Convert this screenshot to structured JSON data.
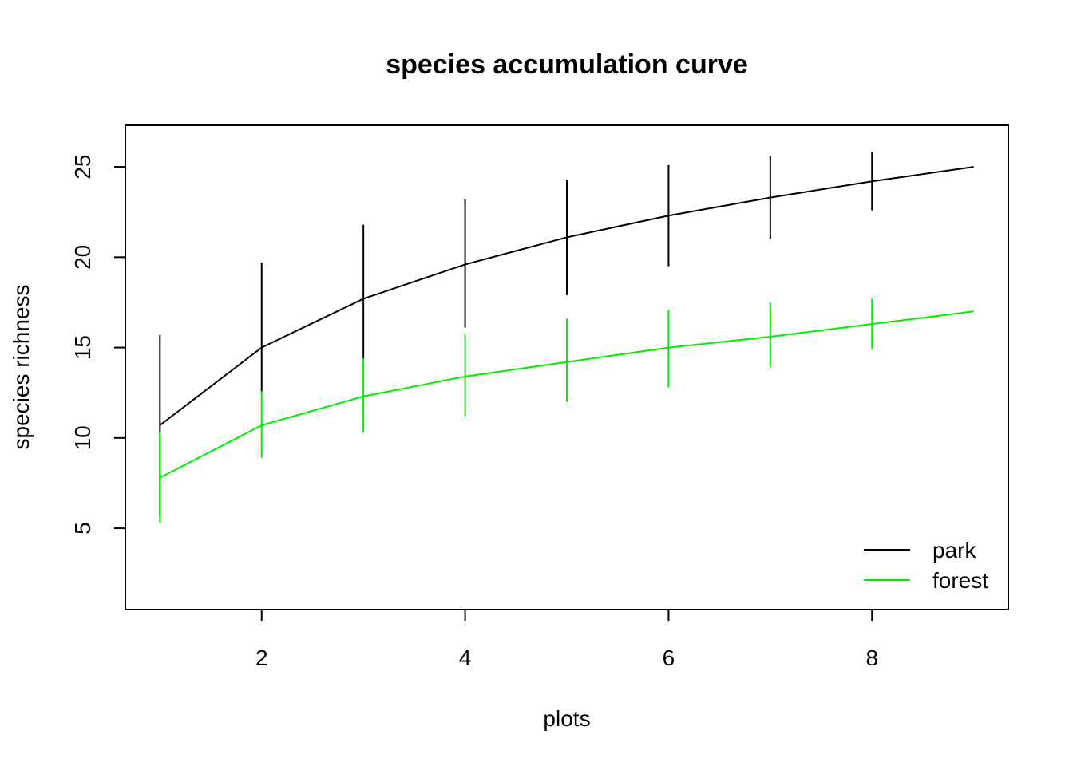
{
  "chart_data": {
    "type": "line",
    "title": "species accumulation curve",
    "xlabel": "plots",
    "ylabel": "species richness",
    "xlim": [
      0.66,
      9.34
    ],
    "ylim": [
      0.5,
      27.3
    ],
    "x_ticks": [
      2,
      4,
      6,
      8
    ],
    "y_ticks": [
      5,
      10,
      15,
      20,
      25
    ],
    "grid": false,
    "legend": {
      "position": "bottom-right",
      "border": false
    },
    "x": [
      1,
      2,
      3,
      4,
      5,
      6,
      7,
      8,
      9
    ],
    "series": [
      {
        "name": "park",
        "color": "#000000",
        "values": [
          10.7,
          15.0,
          17.7,
          19.6,
          21.1,
          22.3,
          23.3,
          24.2,
          25.0
        ],
        "error_low": [
          5.7,
          12.5,
          14.3,
          16.1,
          17.9,
          19.5,
          21.0,
          22.6,
          25.0
        ],
        "error_high": [
          15.7,
          19.7,
          21.8,
          23.2,
          24.3,
          25.1,
          25.6,
          25.8,
          25.0
        ]
      },
      {
        "name": "forest",
        "color": "#00ee00",
        "values": [
          7.8,
          10.7,
          12.3,
          13.4,
          14.2,
          15.0,
          15.6,
          16.3,
          17.0
        ],
        "error_low": [
          5.3,
          8.9,
          10.3,
          11.2,
          12.0,
          12.8,
          13.9,
          14.9,
          17.0
        ],
        "error_high": [
          10.3,
          12.6,
          14.4,
          15.7,
          16.6,
          17.1,
          17.5,
          17.7,
          17.0
        ]
      }
    ]
  }
}
